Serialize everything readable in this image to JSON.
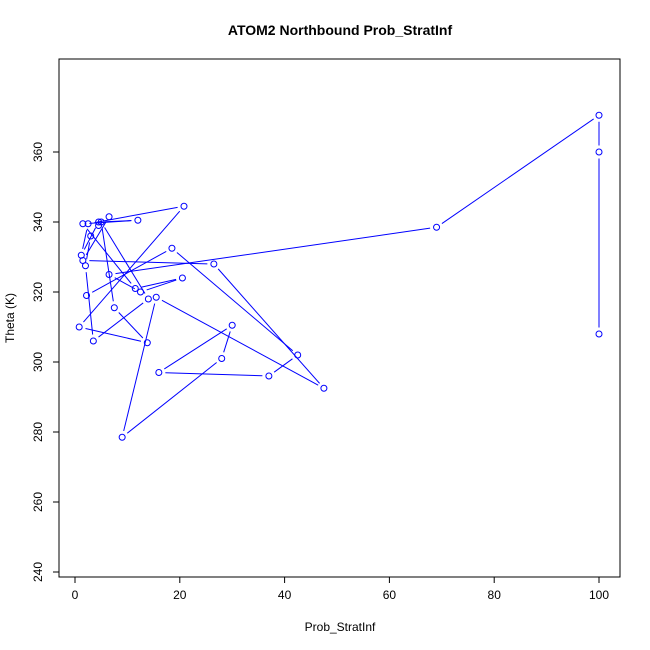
{
  "chart_data": {
    "type": "line",
    "title": "ATOM2 Northbound Prob_StratInf",
    "xlabel": "Prob_StratInf",
    "ylabel": "Theta (K)",
    "xlim": [
      0,
      100
    ],
    "ylim": [
      240,
      370
    ],
    "xticks": [
      0,
      20,
      40,
      60,
      80,
      100
    ],
    "yticks": [
      240,
      260,
      280,
      300,
      320,
      340,
      360
    ],
    "grid": false,
    "series": [
      {
        "color": "#0000ff",
        "marker": "open-circle",
        "x": [
          100,
          100,
          100,
          69,
          6.5,
          12.5,
          20.5,
          11.5,
          1.5,
          12,
          4.5,
          1.2,
          2.5,
          20.8,
          0.8,
          13.8,
          7.5,
          5,
          14,
          3.5,
          2,
          3,
          4.5,
          6.5,
          1.5,
          26.5,
          47.5,
          15.5,
          9,
          28,
          30,
          16,
          37,
          42.5,
          18.5,
          2.2
        ],
        "y": [
          308,
          360,
          370.5,
          338.5,
          325,
          320,
          324,
          321,
          339.5,
          340.5,
          340,
          330.5,
          339.5,
          344.5,
          310,
          305.5,
          315.5,
          340,
          318,
          306,
          327.5,
          336,
          339,
          341.5,
          329,
          328,
          292.5,
          318.5,
          278.5,
          301,
          310.5,
          297,
          296,
          302,
          332.5,
          319
        ]
      }
    ]
  }
}
